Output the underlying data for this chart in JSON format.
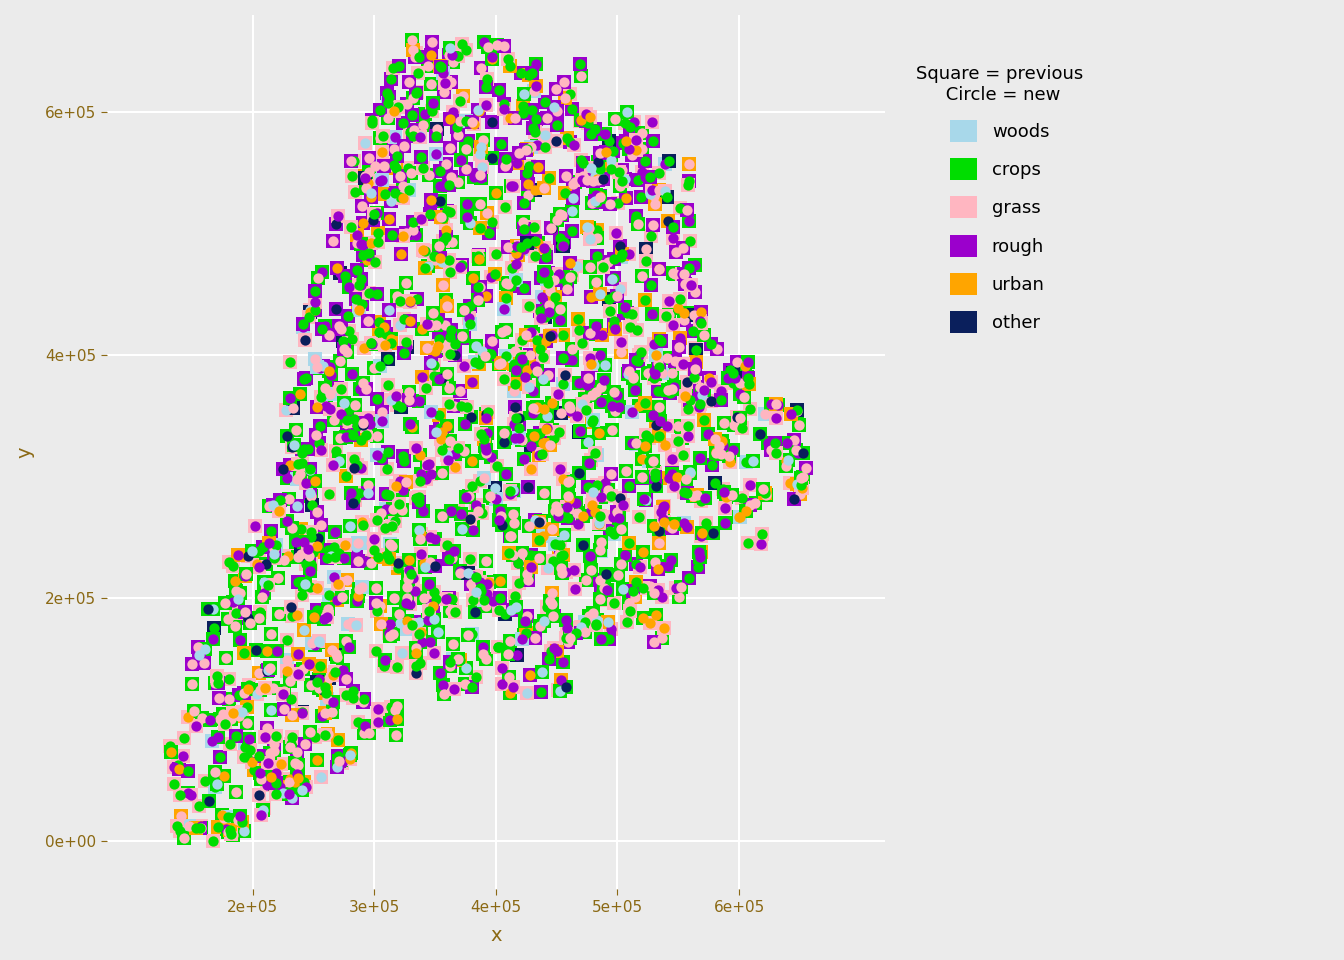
{
  "title": "",
  "xlabel": "x",
  "ylabel": "y",
  "xlim": [
    80000,
    720000
  ],
  "ylim": [
    -40000,
    680000
  ],
  "xticks": [
    200000,
    300000,
    400000,
    500000,
    600000
  ],
  "yticks": [
    0,
    200000,
    400000,
    600000
  ],
  "xtick_labels": [
    "2e+05",
    "3e+05",
    "4e+05",
    "5e+05",
    "6e+05"
  ],
  "ytick_labels": [
    "0e+00",
    "2e+05",
    "4e+05",
    "6e+05"
  ],
  "background_color": "#EBEBEB",
  "grid_color": "white",
  "land_use_colors": {
    "woods": "#A8D8EA",
    "crops": "#00DD00",
    "grass": "#FFB6C1",
    "rough": "#9B00CC",
    "urban": "#FFA500",
    "other": "#0A1F5C"
  },
  "land_use_names": [
    "woods",
    "crops",
    "grass",
    "rough",
    "urban",
    "other"
  ],
  "legend_title": "Square = previous\n Circle = new",
  "n_points": 1800,
  "seed": 42
}
